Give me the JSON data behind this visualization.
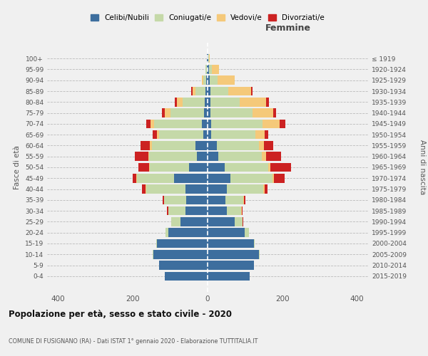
{
  "age_groups": [
    "0-4",
    "5-9",
    "10-14",
    "15-19",
    "20-24",
    "25-29",
    "30-34",
    "35-39",
    "40-44",
    "45-49",
    "50-54",
    "55-59",
    "60-64",
    "65-69",
    "70-74",
    "75-79",
    "80-84",
    "85-89",
    "90-94",
    "95-99",
    "100+"
  ],
  "birth_years": [
    "2015-2019",
    "2010-2014",
    "2005-2009",
    "2000-2004",
    "1995-1999",
    "1990-1994",
    "1985-1989",
    "1980-1984",
    "1975-1979",
    "1970-1974",
    "1965-1969",
    "1960-1964",
    "1955-1959",
    "1950-1954",
    "1945-1949",
    "1940-1944",
    "1935-1939",
    "1930-1934",
    "1925-1929",
    "1920-1924",
    "≤ 1919"
  ],
  "male": {
    "celibe": [
      115,
      130,
      145,
      135,
      105,
      72,
      60,
      58,
      60,
      90,
      50,
      28,
      32,
      12,
      15,
      10,
      7,
      5,
      3,
      2,
      1
    ],
    "coniugato": [
      0,
      0,
      2,
      3,
      8,
      25,
      45,
      58,
      105,
      100,
      105,
      128,
      118,
      118,
      128,
      90,
      60,
      28,
      8,
      3,
      1
    ],
    "vedovo": [
      0,
      0,
      0,
      0,
      0,
      0,
      1,
      1,
      1,
      2,
      2,
      3,
      4,
      5,
      10,
      15,
      15,
      8,
      4,
      1,
      0
    ],
    "divorziato": [
      0,
      0,
      0,
      0,
      0,
      1,
      2,
      3,
      10,
      8,
      28,
      35,
      25,
      12,
      12,
      8,
      5,
      3,
      1,
      0,
      0
    ]
  },
  "female": {
    "nubile": [
      112,
      125,
      138,
      125,
      100,
      72,
      52,
      48,
      52,
      62,
      45,
      28,
      25,
      10,
      10,
      8,
      8,
      8,
      5,
      3,
      1
    ],
    "coniugata": [
      0,
      0,
      1,
      2,
      10,
      22,
      38,
      48,
      98,
      112,
      118,
      118,
      112,
      118,
      138,
      112,
      78,
      48,
      22,
      8,
      2
    ],
    "vedova": [
      0,
      0,
      0,
      0,
      0,
      0,
      1,
      1,
      2,
      4,
      5,
      10,
      14,
      24,
      45,
      55,
      70,
      60,
      45,
      20,
      2
    ],
    "divorziata": [
      0,
      0,
      0,
      0,
      0,
      1,
      2,
      5,
      8,
      28,
      55,
      40,
      25,
      10,
      15,
      8,
      8,
      4,
      1,
      0,
      0
    ]
  },
  "colors": {
    "celibe": "#3d6e9e",
    "coniugato": "#c5d9a8",
    "vedovo": "#f5c97a",
    "divorziato": "#cc2222"
  },
  "xlim": [
    -430,
    430
  ],
  "xticks": [
    -400,
    -200,
    0,
    200,
    400
  ],
  "xticklabels": [
    "400",
    "200",
    "0",
    "200",
    "400"
  ],
  "title": "Popolazione per età, sesso e stato civile - 2020",
  "subtitle": "COMUNE DI FUSIGNANO (RA) - Dati ISTAT 1° gennaio 2020 - Elaborazione TUTTITALIA.IT",
  "ylabel_left": "Fasce di età",
  "ylabel_right": "Anni di nascita",
  "femmine_label": "Femmine",
  "legend_labels": [
    "Celibi/Nubili",
    "Coniugati/e",
    "Vedovi/e",
    "Divorziati/e"
  ],
  "background_color": "#f0f0f0",
  "bar_height": 0.82
}
